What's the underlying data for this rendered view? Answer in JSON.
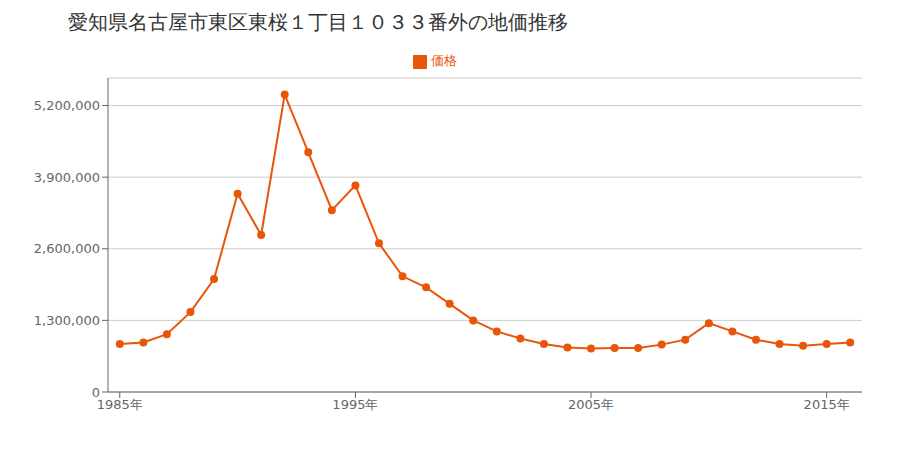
{
  "chart_data": {
    "type": "line",
    "title": "愛知県名古屋市東区東桜１丁目１０３３番外の地価推移",
    "x": [
      1985,
      1986,
      1987,
      1988,
      1989,
      1990,
      1991,
      1992,
      1993,
      1994,
      1995,
      1996,
      1997,
      1998,
      1999,
      2000,
      2001,
      2002,
      2003,
      2004,
      2005,
      2006,
      2007,
      2008,
      2009,
      2010,
      2011,
      2012,
      2013,
      2014,
      2015,
      2016
    ],
    "series": [
      {
        "name": "価格",
        "color": "#e8560a",
        "marker": "circle",
        "values": [
          870000,
          900000,
          1050000,
          1450000,
          2050000,
          3600000,
          2850000,
          5400000,
          4350000,
          3300000,
          3750000,
          2700000,
          2100000,
          1900000,
          1600000,
          1300000,
          1100000,
          970000,
          870000,
          810000,
          790000,
          800000,
          800000,
          860000,
          950000,
          1250000,
          1100000,
          950000,
          870000,
          840000,
          870000,
          900000
        ]
      }
    ],
    "xlim": [
      1984.5,
      2016.5
    ],
    "xticks": [
      {
        "value": 1985,
        "label": "1985年"
      },
      {
        "value": 1995,
        "label": "1995年"
      },
      {
        "value": 2005,
        "label": "2005年"
      },
      {
        "value": 2015,
        "label": "2015年"
      }
    ],
    "ylim": [
      0,
      5700000
    ],
    "yticks": [
      0,
      {
        "value": 1300000,
        "label": "1,300,000"
      },
      {
        "value": 2600000,
        "label": "2,600,000"
      },
      {
        "value": 3900000,
        "label": "3,900,000"
      },
      {
        "value": 5200000,
        "label": "5,200,000"
      }
    ],
    "grid": "y",
    "legend": "top"
  }
}
